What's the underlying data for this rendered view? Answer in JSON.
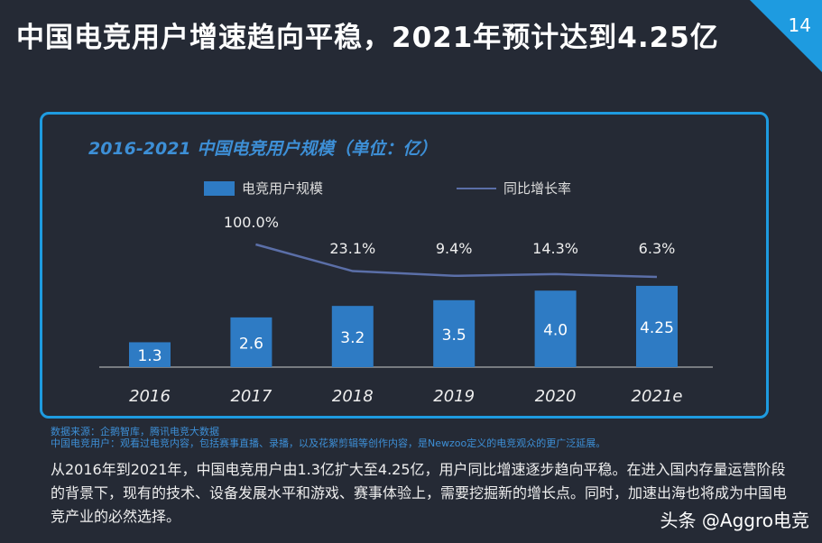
{
  "title": "中国电竞用户增速趋向平稳，2021年预计达到4.25亿",
  "page_number": "14",
  "chart_data": {
    "type": "bar+line",
    "title": "2016-2021 中国电竞用户规模（单位：亿）",
    "categories": [
      "2016",
      "2017",
      "2018",
      "2019",
      "2020",
      "2021e"
    ],
    "series": [
      {
        "name": "电竞用户规模",
        "type": "bar",
        "values": [
          1.3,
          2.6,
          3.2,
          3.5,
          4.0,
          4.25
        ],
        "labels": [
          "1.3",
          "2.6",
          "3.2",
          "3.5",
          "4.0",
          "4.25"
        ],
        "color": "#2e7bc4"
      },
      {
        "name": "同比增长率",
        "type": "line",
        "values": [
          null,
          100.0,
          23.1,
          9.4,
          14.3,
          6.3
        ],
        "labels": [
          "",
          "100.0%",
          "23.1%",
          "9.4%",
          "14.3%",
          "6.3%"
        ],
        "color": "#5b6fa8"
      }
    ],
    "legend": "top"
  },
  "notes": [
    "数据来源：企鹅智库，腾讯电竞大数据",
    "中国电竞用户：观看过电竞内容，包括赛事直播、录播，以及花絮剪辑等创作内容，是Newzoo定义的电竞观众的更广泛延展。"
  ],
  "paragraph": "从2016年到2021年，中国电竞用户由1.3亿扩大至4.25亿，用户同比增速逐步趋向平稳。在进入国内存量运营阶段的背景下，现有的技术、设备发展水平和游戏、赛事体验上，需要挖掘新的增长点。同时，加速出海也将成为中国电竞产业的必然选择。",
  "brand": "头条 @Aggro电竞",
  "colors": {
    "accent": "#1e9be0",
    "background": "#252a35"
  }
}
